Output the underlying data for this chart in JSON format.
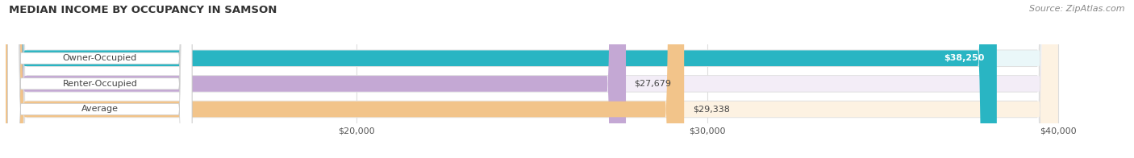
{
  "title": "MEDIAN INCOME BY OCCUPANCY IN SAMSON",
  "source": "Source: ZipAtlas.com",
  "categories": [
    "Owner-Occupied",
    "Renter-Occupied",
    "Average"
  ],
  "values": [
    38250,
    27679,
    29338
  ],
  "bar_colors": [
    "#29b5c3",
    "#c4a8d4",
    "#f2c48a"
  ],
  "bar_bg_colors": [
    "#eaf7f9",
    "#f3edf7",
    "#fdf2e2"
  ],
  "bar_outer_colors": [
    "#d0eef2",
    "#e8ddf0",
    "#f7e5c8"
  ],
  "value_labels": [
    "$38,250",
    "$27,679",
    "$29,338"
  ],
  "value_label_inside": [
    true,
    false,
    false
  ],
  "xlim": [
    10000,
    42000
  ],
  "xstart": 10000,
  "xend": 40000,
  "xtick_positions": [
    20000,
    30000,
    40000
  ],
  "xticklabels": [
    "$20,000",
    "$30,000",
    "$40,000"
  ],
  "figsize": [
    14.06,
    1.96
  ],
  "dpi": 100,
  "title_fontsize": 9.5,
  "bar_label_fontsize": 8,
  "value_label_fontsize": 8,
  "source_fontsize": 8,
  "bar_height": 0.62,
  "bar_gap": 0.18,
  "bg_color": "#ffffff"
}
